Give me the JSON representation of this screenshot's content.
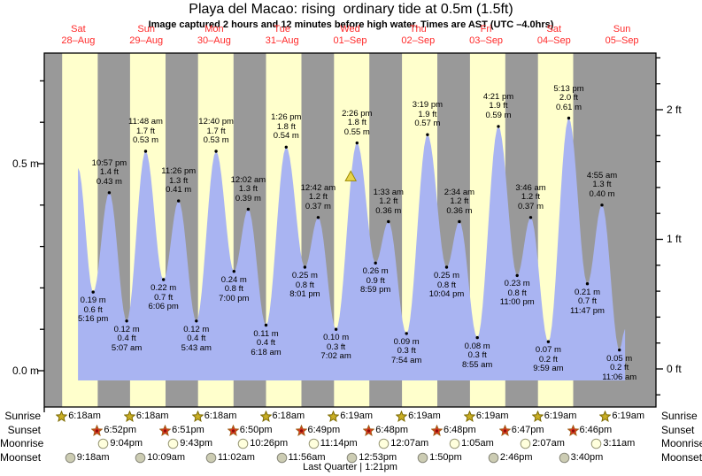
{
  "title": "Playa del Macao: rising  ordinary tide at 0.5m (1.5ft)",
  "subtitle": "Image captured 2 hours and 12 minutes before high water. Times are AST (UTC –4.0hrs)",
  "colors": {
    "day_band": "#ffffcc",
    "night_band": "#999999",
    "tide_fill": "#a9b4f2",
    "day_label_red": "#ff2a2a",
    "sunrise_star": "#c9ae25",
    "sunset_star": "#e03222",
    "moonrise_circle": "#ffffdd",
    "moonset_circle": "#ccccb3",
    "marker_triangle": "#e8d44d"
  },
  "days": [
    {
      "name": "Sat",
      "date": "28–Aug"
    },
    {
      "name": "Sun",
      "date": "29–Aug"
    },
    {
      "name": "Mon",
      "date": "30–Aug"
    },
    {
      "name": "Tue",
      "date": "31–Aug"
    },
    {
      "name": "Wed",
      "date": "01–Sep"
    },
    {
      "name": "Thu",
      "date": "02–Sep"
    },
    {
      "name": "Fri",
      "date": "03–Sep"
    },
    {
      "name": "Sat",
      "date": "04–Sep"
    },
    {
      "name": "Sun",
      "date": "05–Sep"
    }
  ],
  "axis": {
    "left_labels": [
      {
        "text": "0.5 m"
      },
      {
        "text": "0.0 m"
      }
    ],
    "right_labels": [
      {
        "text": "2 ft"
      },
      {
        "text": "1 ft"
      },
      {
        "text": "0 ft"
      }
    ]
  },
  "chart_data": {
    "type": "area",
    "title": "Playa del Macao tide heights",
    "xlabel": "days Aug 28 – Sep 5",
    "ylabel_left": "metres",
    "ylabel_right": "feet",
    "ylim_m": [
      -0.08,
      0.77
    ],
    "extremes": [
      {
        "day": 0,
        "kind": "high",
        "annotated": false,
        "hour_est": 11.9,
        "height_m": 0.49
      },
      {
        "day": 0,
        "kind": "low",
        "annotated": true,
        "time": "5:16 pm",
        "ft": "0.6 ft",
        "m": "0.19 m"
      },
      {
        "day": 0,
        "kind": "high",
        "annotated": true,
        "time": "10:57 pm",
        "ft": "1.4 ft",
        "m": "0.43 m"
      },
      {
        "day": 1,
        "kind": "low",
        "annotated": true,
        "time": "5:07 am",
        "ft": "0.4 ft",
        "m": "0.12 m"
      },
      {
        "day": 1,
        "kind": "high",
        "annotated": true,
        "time": "11:48 am",
        "ft": "1.7 ft",
        "m": "0.53 m"
      },
      {
        "day": 1,
        "kind": "low",
        "annotated": true,
        "time": "6:06 pm",
        "ft": "0.7 ft",
        "m": "0.22 m"
      },
      {
        "day": 1,
        "kind": "high",
        "annotated": true,
        "time": "11:26 pm",
        "ft": "1.3 ft",
        "m": "0.41 m"
      },
      {
        "day": 2,
        "kind": "low",
        "annotated": true,
        "time": "5:43 am",
        "ft": "0.4 ft",
        "m": "0.12 m"
      },
      {
        "day": 2,
        "kind": "high",
        "annotated": true,
        "time": "12:40 pm",
        "ft": "1.7 ft",
        "m": "0.53 m"
      },
      {
        "day": 2,
        "kind": "low",
        "annotated": true,
        "time": "7:00 pm",
        "ft": "0.8 ft",
        "m": "0.24 m"
      },
      {
        "day": 3,
        "kind": "high",
        "annotated": true,
        "time": "12:02 am",
        "ft": "1.3 ft",
        "m": "0.39 m"
      },
      {
        "day": 3,
        "kind": "low",
        "annotated": true,
        "time": "6:18 am",
        "ft": "0.4 ft",
        "m": "0.11 m"
      },
      {
        "day": 3,
        "kind": "high",
        "annotated": true,
        "time": "1:26 pm",
        "ft": "1.8 ft",
        "m": "0.54 m"
      },
      {
        "day": 3,
        "kind": "low",
        "annotated": true,
        "time": "8:01 pm",
        "ft": "0.8 ft",
        "m": "0.25 m"
      },
      {
        "day": 4,
        "kind": "high",
        "annotated": true,
        "time": "12:42 am",
        "ft": "1.2 ft",
        "m": "0.37 m"
      },
      {
        "day": 4,
        "kind": "low",
        "annotated": true,
        "time": "7:02 am",
        "ft": "0.3 ft",
        "m": "0.10 m"
      },
      {
        "day": 4,
        "kind": "high",
        "annotated": true,
        "time": "2:26 pm",
        "ft": "1.8 ft",
        "m": "0.55 m"
      },
      {
        "day": 4,
        "kind": "low",
        "annotated": true,
        "time": "8:59 pm",
        "ft": "0.9 ft",
        "m": "0.26 m"
      },
      {
        "day": 5,
        "kind": "high",
        "annotated": true,
        "time": "1:33 am",
        "ft": "1.2 ft",
        "m": "0.36 m"
      },
      {
        "day": 5,
        "kind": "low",
        "annotated": true,
        "time": "7:54 am",
        "ft": "0.3 ft",
        "m": "0.09 m"
      },
      {
        "day": 5,
        "kind": "high",
        "annotated": true,
        "time": "3:19 pm",
        "ft": "1.9 ft",
        "m": "0.57 m"
      },
      {
        "day": 5,
        "kind": "low",
        "annotated": true,
        "time": "10:04 pm",
        "ft": "0.8 ft",
        "m": "0.25 m"
      },
      {
        "day": 6,
        "kind": "high",
        "annotated": true,
        "time": "2:34 am",
        "ft": "1.2 ft",
        "m": "0.36 m"
      },
      {
        "day": 6,
        "kind": "low",
        "annotated": true,
        "time": "8:55 am",
        "ft": "0.3 ft",
        "m": "0.08 m"
      },
      {
        "day": 6,
        "kind": "high",
        "annotated": true,
        "time": "4:21 pm",
        "ft": "1.9 ft",
        "m": "0.59 m"
      },
      {
        "day": 6,
        "kind": "low",
        "annotated": true,
        "time": "11:00 pm",
        "ft": "0.8 ft",
        "m": "0.23 m"
      },
      {
        "day": 7,
        "kind": "high",
        "annotated": true,
        "time": "3:46 am",
        "ft": "1.2 ft",
        "m": "0.37 m"
      },
      {
        "day": 7,
        "kind": "low",
        "annotated": true,
        "time": "9:59 am",
        "ft": "0.2 ft",
        "m": "0.07 m"
      },
      {
        "day": 7,
        "kind": "high",
        "annotated": true,
        "time": "5:13 pm",
        "ft": "2.0 ft",
        "m": "0.61 m"
      },
      {
        "day": 7,
        "kind": "low",
        "annotated": true,
        "time": "11:47 pm",
        "ft": "0.7 ft",
        "m": "0.21 m"
      },
      {
        "day": 8,
        "kind": "high",
        "annotated": true,
        "time": "4:55 am",
        "ft": "1.3 ft",
        "m": "0.40 m"
      },
      {
        "day": 8,
        "kind": "low",
        "annotated": true,
        "time": "11:06 am",
        "ft": "0.2 ft",
        "m": "0.05 m"
      }
    ],
    "curve_end": {
      "day": 8,
      "hour_est": 13.1,
      "height_m": 0.1
    },
    "capture_marker": {
      "day": 4,
      "hour_est": 12.23
    }
  },
  "almanac": {
    "rows": [
      {
        "label": "Sunrise",
        "icon": "sunrise-star",
        "entries": [
          {
            "day": 0,
            "time": "6:18am"
          },
          {
            "day": 1,
            "time": "6:18am"
          },
          {
            "day": 2,
            "time": "6:18am"
          },
          {
            "day": 3,
            "time": "6:18am"
          },
          {
            "day": 4,
            "time": "6:19am"
          },
          {
            "day": 5,
            "time": "6:19am"
          },
          {
            "day": 6,
            "time": "6:19am"
          },
          {
            "day": 7,
            "time": "6:19am"
          },
          {
            "day": 8,
            "time": "6:19am"
          }
        ]
      },
      {
        "label": "Sunset",
        "icon": "sunset-star",
        "entries": [
          {
            "day": 0,
            "time": "6:52pm"
          },
          {
            "day": 1,
            "time": "6:51pm"
          },
          {
            "day": 2,
            "time": "6:50pm"
          },
          {
            "day": 3,
            "time": "6:49pm"
          },
          {
            "day": 4,
            "time": "6:48pm"
          },
          {
            "day": 5,
            "time": "6:48pm"
          },
          {
            "day": 6,
            "time": "6:47pm"
          },
          {
            "day": 7,
            "time": "6:46pm"
          }
        ]
      },
      {
        "label": "Moonrise",
        "icon": "moonrise-circle",
        "entries": [
          {
            "day": 0,
            "time": "9:04pm"
          },
          {
            "day": 1,
            "time": "9:43pm"
          },
          {
            "day": 2,
            "time": "10:26pm"
          },
          {
            "day": 3,
            "time": "11:14pm"
          },
          {
            "day": 5,
            "time": "12:07am"
          },
          {
            "day": 6,
            "time": "1:05am"
          },
          {
            "day": 7,
            "time": "2:07am"
          },
          {
            "day": 8,
            "time": "3:11am"
          }
        ]
      },
      {
        "label": "Moonset",
        "icon": "moonset-circle",
        "entries": [
          {
            "day": 0,
            "time": "9:18am"
          },
          {
            "day": 1,
            "time": "10:09am"
          },
          {
            "day": 2,
            "time": "11:02am"
          },
          {
            "day": 3,
            "time": "11:56am"
          },
          {
            "day": 4,
            "time": "12:53pm"
          },
          {
            "day": 5,
            "time": "1:50pm"
          },
          {
            "day": 6,
            "time": "2:46pm"
          },
          {
            "day": 7,
            "time": "3:40pm"
          }
        ]
      }
    ],
    "moon_phase": "Last Quarter | 1:21pm"
  }
}
